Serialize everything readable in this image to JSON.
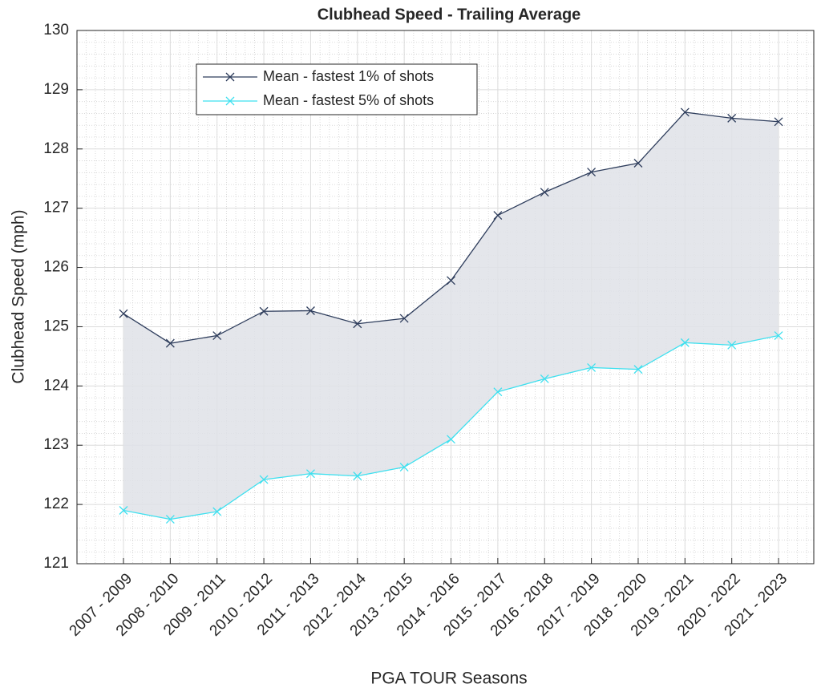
{
  "chart_data": {
    "type": "line",
    "title": "Clubhead Speed - Trailing Average",
    "xlabel": "PGA TOUR Seasons",
    "ylabel": "Clubhead Speed (mph)",
    "categories": [
      "2007 - 2009",
      "2008 - 2010",
      "2009 - 2011",
      "2010 - 2012",
      "2011 - 2013",
      "2012 - 2014",
      "2013 - 2015",
      "2014 - 2016",
      "2015 - 2017",
      "2016 - 2018",
      "2017 - 2019",
      "2018 - 2020",
      "2019 - 2021",
      "2020 - 2022",
      "2021 - 2023"
    ],
    "series": [
      {
        "name": "Mean - fastest 1% of shots",
        "color": "#2e3d5c",
        "marker": "x",
        "values": [
          125.22,
          124.72,
          124.85,
          125.26,
          125.27,
          125.05,
          125.14,
          125.78,
          126.88,
          127.27,
          127.61,
          127.76,
          128.62,
          128.52,
          128.46
        ]
      },
      {
        "name": "Mean - fastest 5% of shots",
        "color": "#3ee0ef",
        "marker": "x",
        "values": [
          121.9,
          121.75,
          121.88,
          122.42,
          122.52,
          122.48,
          122.63,
          123.1,
          123.9,
          124.12,
          124.31,
          124.28,
          124.73,
          124.69,
          124.85
        ]
      }
    ],
    "fill_between": true,
    "fill_color": "#dfe2e8",
    "ylim": [
      121,
      130
    ],
    "yticks": [
      121,
      122,
      123,
      124,
      125,
      126,
      127,
      128,
      129,
      130
    ],
    "grid": true,
    "minor_grid": true,
    "legend_position": "upper left"
  }
}
